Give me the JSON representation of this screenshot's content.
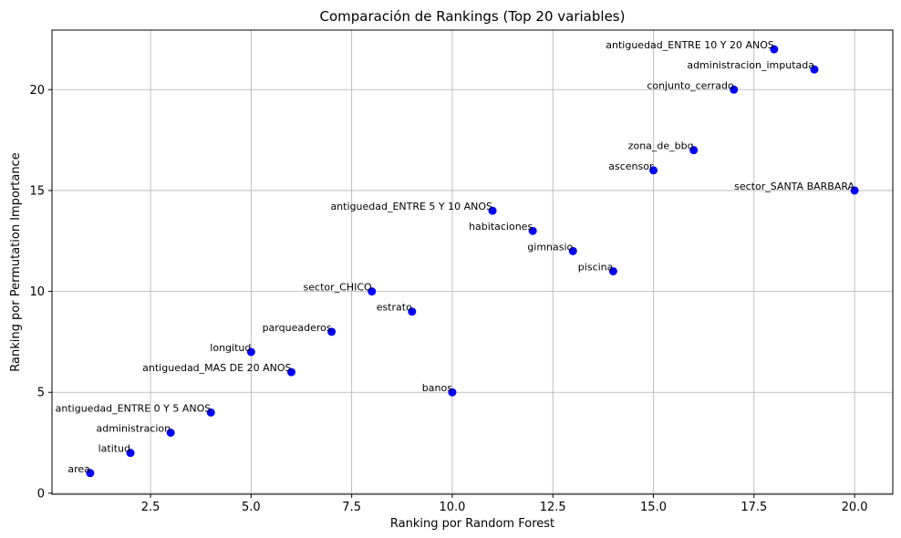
{
  "chart_data": {
    "type": "scatter",
    "title": "Comparación de Rankings (Top 20 variables)",
    "xlabel": "Ranking por Random Forest",
    "ylabel": "Ranking por Permutation Importance",
    "xlim": [
      0.05,
      20.95
    ],
    "ylim": [
      -0.05,
      22.95
    ],
    "xticks": [
      2.5,
      5.0,
      7.5,
      10.0,
      12.5,
      15.0,
      17.5,
      20.0
    ],
    "xtick_labels": [
      "2.5",
      "5.0",
      "7.5",
      "10.0",
      "12.5",
      "15.0",
      "17.5",
      "20.0"
    ],
    "yticks": [
      0,
      5,
      10,
      15,
      20
    ],
    "ytick_labels": [
      "0",
      "5",
      "10",
      "15",
      "20"
    ],
    "grid": true,
    "marker_color": "#0000ff",
    "points": [
      {
        "label": "area",
        "x": 1,
        "y": 1
      },
      {
        "label": "latitud",
        "x": 2,
        "y": 2
      },
      {
        "label": "administracion",
        "x": 3,
        "y": 3
      },
      {
        "label": "antiguedad_ENTRE 0 Y 5 ANOS",
        "x": 4,
        "y": 4
      },
      {
        "label": "longitud",
        "x": 5,
        "y": 7
      },
      {
        "label": "antiguedad_MAS DE 20 ANOS",
        "x": 6,
        "y": 6
      },
      {
        "label": "parqueaderos",
        "x": 7,
        "y": 8
      },
      {
        "label": "sector_CHICO",
        "x": 8,
        "y": 10
      },
      {
        "label": "estrato",
        "x": 9,
        "y": 9
      },
      {
        "label": "banos",
        "x": 10,
        "y": 5
      },
      {
        "label": "antiguedad_ENTRE 5 Y 10 ANOS",
        "x": 11,
        "y": 14
      },
      {
        "label": "habitaciones",
        "x": 12,
        "y": 13
      },
      {
        "label": "gimnasio",
        "x": 13,
        "y": 12
      },
      {
        "label": "piscina",
        "x": 14,
        "y": 11
      },
      {
        "label": "ascensor",
        "x": 15,
        "y": 16
      },
      {
        "label": "zona_de_bbq",
        "x": 16,
        "y": 17
      },
      {
        "label": "conjunto_cerrado",
        "x": 17,
        "y": 20
      },
      {
        "label": "antiguedad_ENTRE 10 Y 20 ANOS",
        "x": 18,
        "y": 22
      },
      {
        "label": "administracion_imputada",
        "x": 19,
        "y": 21
      },
      {
        "label": "sector_SANTA BARBARA",
        "x": 20,
        "y": 15
      }
    ]
  }
}
